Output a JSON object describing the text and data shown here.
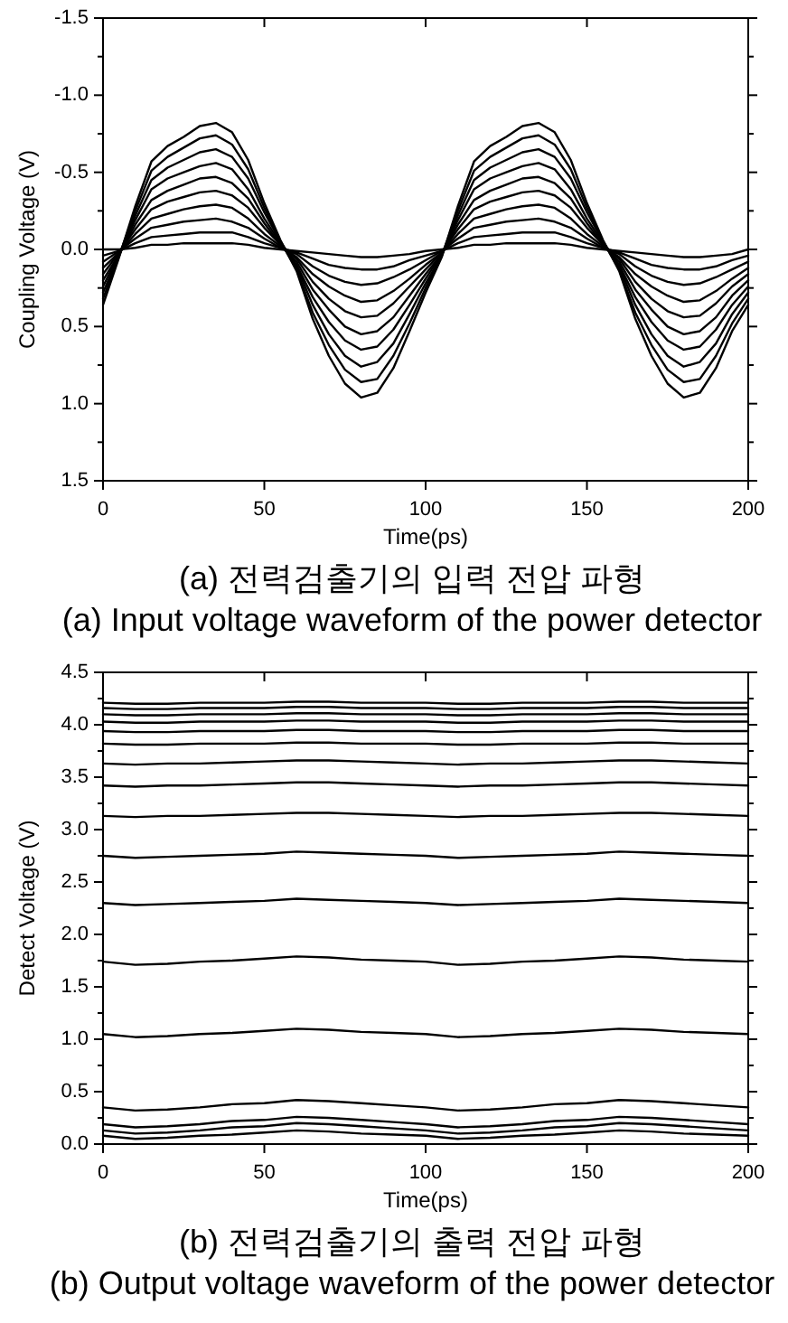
{
  "chart_data": [
    {
      "type": "line",
      "xlabel": "Time(ps)",
      "ylabel": "Coupling Voltage (V)",
      "annotations": [
        "(a) 전력검출기의 입력 전압 파형",
        "(a) Input voltage waveform of the power detector"
      ],
      "x": [
        0,
        5,
        10,
        15,
        20,
        25,
        30,
        35,
        40,
        45,
        50,
        55,
        60,
        65,
        70,
        75,
        80,
        85,
        90,
        95,
        100,
        105,
        110,
        115,
        120,
        125,
        130,
        135,
        140,
        145,
        150,
        155,
        160,
        165,
        170,
        175,
        180,
        185,
        190,
        195,
        200
      ],
      "xlim": [
        0,
        200
      ],
      "xticks": [
        0,
        50,
        100,
        150,
        200
      ],
      "ylim": [
        1.5,
        -1.5
      ],
      "yticks": [
        -1.5,
        {
          "value": -1.25,
          "label": null
        },
        {
          "value": -1,
          "label": "-1.0"
        },
        {
          "value": -0.75,
          "label": null
        },
        -0.5,
        {
          "value": -0.25,
          "label": null
        },
        {
          "value": 0,
          "label": "0.0"
        },
        {
          "value": 0.25,
          "label": null
        },
        0.5,
        {
          "value": 0.75,
          "label": null
        },
        {
          "value": 1,
          "label": "1.0"
        },
        {
          "value": 1.25,
          "label": null
        },
        1.5
      ],
      "series": [
        {
          "color": "#000000",
          "values": [
            0.36,
            0.05,
            -0.28,
            -0.57,
            -0.67,
            -0.73,
            -0.8,
            -0.82,
            -0.76,
            -0.58,
            -0.3,
            -0.06,
            0.14,
            0.45,
            0.69,
            0.87,
            0.96,
            0.93,
            0.77,
            0.53,
            0.28,
            0.05,
            -0.28,
            -0.57,
            -0.67,
            -0.73,
            -0.8,
            -0.82,
            -0.76,
            -0.58,
            -0.3,
            -0.06,
            0.14,
            0.45,
            0.69,
            0.87,
            0.96,
            0.93,
            0.77,
            0.53,
            0.36
          ]
        },
        {
          "color": "#000000",
          "values": [
            0.32,
            0.04,
            -0.25,
            -0.51,
            -0.6,
            -0.66,
            -0.72,
            -0.74,
            -0.68,
            -0.52,
            -0.27,
            -0.05,
            0.13,
            0.41,
            0.62,
            0.78,
            0.86,
            0.84,
            0.69,
            0.48,
            0.25,
            0.04,
            -0.25,
            -0.51,
            -0.6,
            -0.66,
            -0.72,
            -0.74,
            -0.68,
            -0.52,
            -0.27,
            -0.05,
            0.13,
            0.41,
            0.62,
            0.78,
            0.86,
            0.84,
            0.69,
            0.48,
            0.32
          ]
        },
        {
          "color": "#000000",
          "values": [
            0.28,
            0.04,
            -0.22,
            -0.45,
            -0.53,
            -0.58,
            -0.63,
            -0.65,
            -0.6,
            -0.46,
            -0.24,
            -0.05,
            0.11,
            0.36,
            0.55,
            0.69,
            0.76,
            0.73,
            0.61,
            0.42,
            0.22,
            0.04,
            -0.22,
            -0.45,
            -0.53,
            -0.58,
            -0.63,
            -0.65,
            -0.6,
            -0.46,
            -0.24,
            -0.05,
            0.11,
            0.36,
            0.55,
            0.69,
            0.76,
            0.73,
            0.61,
            0.42,
            0.28
          ]
        },
        {
          "color": "#000000",
          "values": [
            0.24,
            0.03,
            -0.19,
            -0.39,
            -0.46,
            -0.5,
            -0.54,
            -0.56,
            -0.52,
            -0.39,
            -0.2,
            -0.04,
            0.1,
            0.31,
            0.47,
            0.59,
            0.65,
            0.63,
            0.52,
            0.36,
            0.19,
            0.03,
            -0.19,
            -0.39,
            -0.46,
            -0.5,
            -0.54,
            -0.56,
            -0.52,
            -0.39,
            -0.2,
            -0.04,
            0.1,
            0.31,
            0.47,
            0.59,
            0.65,
            0.63,
            0.52,
            0.36,
            0.24
          ]
        },
        {
          "color": "#000000",
          "values": [
            0.2,
            0.03,
            -0.16,
            -0.32,
            -0.38,
            -0.42,
            -0.46,
            -0.47,
            -0.43,
            -0.33,
            -0.17,
            -0.03,
            0.08,
            0.26,
            0.39,
            0.5,
            0.55,
            0.53,
            0.44,
            0.3,
            0.16,
            0.03,
            -0.16,
            -0.32,
            -0.38,
            -0.42,
            -0.46,
            -0.47,
            -0.43,
            -0.33,
            -0.17,
            -0.03,
            0.08,
            0.26,
            0.39,
            0.5,
            0.55,
            0.53,
            0.44,
            0.3,
            0.2
          ]
        },
        {
          "color": "#000000",
          "values": [
            0.16,
            0.02,
            -0.13,
            -0.26,
            -0.31,
            -0.34,
            -0.37,
            -0.38,
            -0.35,
            -0.27,
            -0.14,
            -0.03,
            0.06,
            0.21,
            0.32,
            0.4,
            0.44,
            0.43,
            0.35,
            0.24,
            0.13,
            0.02,
            -0.13,
            -0.26,
            -0.31,
            -0.34,
            -0.37,
            -0.38,
            -0.35,
            -0.27,
            -0.14,
            -0.03,
            0.06,
            0.21,
            0.32,
            0.4,
            0.44,
            0.43,
            0.35,
            0.24,
            0.16
          ]
        },
        {
          "color": "#000000",
          "values": [
            0.12,
            0.02,
            -0.1,
            -0.2,
            -0.23,
            -0.26,
            -0.28,
            -0.29,
            -0.27,
            -0.2,
            -0.1,
            -0.02,
            0.05,
            0.16,
            0.24,
            0.3,
            0.34,
            0.33,
            0.27,
            0.19,
            0.1,
            0.02,
            -0.1,
            -0.2,
            -0.23,
            -0.26,
            -0.28,
            -0.29,
            -0.27,
            -0.2,
            -0.1,
            -0.02,
            0.05,
            0.16,
            0.24,
            0.3,
            0.34,
            0.33,
            0.27,
            0.19,
            0.12
          ]
        },
        {
          "color": "#000000",
          "values": [
            0.08,
            0.01,
            -0.07,
            -0.14,
            -0.16,
            -0.18,
            -0.19,
            -0.2,
            -0.18,
            -0.14,
            -0.07,
            -0.01,
            0.03,
            0.11,
            0.17,
            0.21,
            0.23,
            0.22,
            0.18,
            0.13,
            0.07,
            0.01,
            -0.07,
            -0.14,
            -0.16,
            -0.18,
            -0.19,
            -0.2,
            -0.18,
            -0.14,
            -0.07,
            -0.01,
            0.03,
            0.11,
            0.17,
            0.21,
            0.23,
            0.22,
            0.18,
            0.13,
            0.08
          ]
        },
        {
          "color": "#000000",
          "values": [
            0.04,
            0.01,
            -0.04,
            -0.08,
            -0.09,
            -0.1,
            -0.11,
            -0.11,
            -0.11,
            -0.08,
            -0.04,
            -0.01,
            0.02,
            0.06,
            0.1,
            0.12,
            0.13,
            0.13,
            0.11,
            0.07,
            0.04,
            0.01,
            -0.04,
            -0.08,
            -0.09,
            -0.1,
            -0.11,
            -0.11,
            -0.11,
            -0.08,
            -0.04,
            -0.01,
            0.02,
            0.06,
            0.1,
            0.12,
            0.13,
            0.13,
            0.11,
            0.07,
            0.04
          ]
        },
        {
          "color": "#000000",
          "values": [
            0,
            0,
            -0.01,
            -0.03,
            -0.03,
            -0.04,
            -0.04,
            -0.04,
            -0.04,
            -0.03,
            -0.01,
            0,
            0.01,
            0.02,
            0.03,
            0.04,
            0.05,
            0.05,
            0.04,
            0.03,
            0.01,
            0,
            -0.01,
            -0.03,
            -0.03,
            -0.04,
            -0.04,
            -0.04,
            -0.04,
            -0.03,
            -0.01,
            0,
            0.01,
            0.02,
            0.03,
            0.04,
            0.05,
            0.05,
            0.04,
            0.03,
            0
          ]
        }
      ]
    },
    {
      "type": "line",
      "xlabel": "Time(ps)",
      "ylabel": "Detect Voltage (V)",
      "annotations": [
        "(b) 전력검출기의 출력 전압 파형",
        "(b) Output voltage waveform of the power detector"
      ],
      "x": [
        0,
        10,
        20,
        30,
        40,
        50,
        60,
        70,
        80,
        90,
        100,
        110,
        120,
        130,
        140,
        150,
        160,
        170,
        180,
        190,
        200
      ],
      "xlim": [
        0,
        200
      ],
      "xticks": [
        0,
        50,
        100,
        150,
        200
      ],
      "ylim": [
        0,
        4.5
      ],
      "yticks": [
        {
          "value": 0,
          "label": "0.0"
        },
        {
          "value": 0.25,
          "label": null
        },
        0.5,
        {
          "value": 0.75,
          "label": null
        },
        {
          "value": 1,
          "label": "1.0"
        },
        {
          "value": 1.25,
          "label": null
        },
        1.5,
        {
          "value": 1.75,
          "label": null
        },
        {
          "value": 2,
          "label": "2.0"
        },
        {
          "value": 2.25,
          "label": null
        },
        2.5,
        {
          "value": 2.75,
          "label": null
        },
        {
          "value": 3,
          "label": "3.0"
        },
        {
          "value": 3.25,
          "label": null
        },
        3.5,
        {
          "value": 3.75,
          "label": null
        },
        {
          "value": 4,
          "label": "4.0"
        },
        {
          "value": 4.25,
          "label": null
        },
        4.5
      ],
      "series": [
        {
          "color": "#000000",
          "values": [
            4.21,
            4.2,
            4.2,
            4.21,
            4.21,
            4.21,
            4.22,
            4.22,
            4.21,
            4.21,
            4.21,
            4.2,
            4.2,
            4.21,
            4.21,
            4.21,
            4.22,
            4.22,
            4.21,
            4.21,
            4.21
          ]
        },
        {
          "color": "#000000",
          "values": [
            4.16,
            4.15,
            4.15,
            4.16,
            4.16,
            4.16,
            4.17,
            4.17,
            4.16,
            4.16,
            4.16,
            4.15,
            4.15,
            4.16,
            4.16,
            4.16,
            4.17,
            4.17,
            4.16,
            4.16,
            4.16
          ]
        },
        {
          "color": "#000000",
          "values": [
            4.1,
            4.09,
            4.09,
            4.1,
            4.1,
            4.1,
            4.11,
            4.11,
            4.1,
            4.1,
            4.1,
            4.09,
            4.09,
            4.1,
            4.1,
            4.1,
            4.11,
            4.11,
            4.1,
            4.1,
            4.1
          ]
        },
        {
          "color": "#000000",
          "values": [
            4.03,
            4.02,
            4.02,
            4.03,
            4.03,
            4.03,
            4.04,
            4.04,
            4.03,
            4.03,
            4.03,
            4.02,
            4.02,
            4.03,
            4.03,
            4.03,
            4.04,
            4.04,
            4.03,
            4.03,
            4.03
          ]
        },
        {
          "color": "#000000",
          "values": [
            3.94,
            3.93,
            3.93,
            3.94,
            3.94,
            3.94,
            3.95,
            3.95,
            3.94,
            3.94,
            3.94,
            3.93,
            3.93,
            3.94,
            3.94,
            3.94,
            3.95,
            3.95,
            3.94,
            3.94,
            3.94
          ]
        },
        {
          "color": "#000000",
          "values": [
            3.82,
            3.81,
            3.81,
            3.82,
            3.82,
            3.82,
            3.83,
            3.83,
            3.82,
            3.82,
            3.82,
            3.81,
            3.81,
            3.82,
            3.82,
            3.82,
            3.83,
            3.83,
            3.82,
            3.82,
            3.82
          ]
        },
        {
          "color": "#000000",
          "values": [
            3.63,
            3.62,
            3.63,
            3.63,
            3.64,
            3.65,
            3.66,
            3.66,
            3.65,
            3.64,
            3.63,
            3.62,
            3.63,
            3.63,
            3.64,
            3.65,
            3.66,
            3.66,
            3.65,
            3.64,
            3.63
          ]
        },
        {
          "color": "#000000",
          "values": [
            3.42,
            3.41,
            3.42,
            3.42,
            3.43,
            3.44,
            3.45,
            3.45,
            3.44,
            3.43,
            3.42,
            3.41,
            3.42,
            3.42,
            3.43,
            3.44,
            3.45,
            3.45,
            3.44,
            3.43,
            3.42
          ]
        },
        {
          "color": "#000000",
          "values": [
            3.13,
            3.12,
            3.13,
            3.13,
            3.14,
            3.15,
            3.16,
            3.16,
            3.15,
            3.14,
            3.13,
            3.12,
            3.13,
            3.13,
            3.14,
            3.15,
            3.16,
            3.16,
            3.15,
            3.14,
            3.13
          ]
        },
        {
          "color": "#000000",
          "values": [
            2.75,
            2.73,
            2.74,
            2.75,
            2.76,
            2.77,
            2.79,
            2.78,
            2.77,
            2.76,
            2.75,
            2.73,
            2.74,
            2.75,
            2.76,
            2.77,
            2.79,
            2.78,
            2.77,
            2.76,
            2.75
          ]
        },
        {
          "color": "#000000",
          "values": [
            2.3,
            2.28,
            2.29,
            2.3,
            2.31,
            2.32,
            2.34,
            2.33,
            2.32,
            2.31,
            2.3,
            2.28,
            2.29,
            2.3,
            2.31,
            2.32,
            2.34,
            2.33,
            2.32,
            2.31,
            2.3
          ]
        },
        {
          "color": "#000000",
          "values": [
            1.74,
            1.71,
            1.72,
            1.74,
            1.75,
            1.77,
            1.79,
            1.78,
            1.76,
            1.75,
            1.74,
            1.71,
            1.72,
            1.74,
            1.75,
            1.77,
            1.79,
            1.78,
            1.76,
            1.75,
            1.74
          ]
        },
        {
          "color": "#000000",
          "values": [
            1.05,
            1.02,
            1.03,
            1.05,
            1.06,
            1.08,
            1.1,
            1.09,
            1.07,
            1.06,
            1.05,
            1.02,
            1.03,
            1.05,
            1.06,
            1.08,
            1.1,
            1.09,
            1.07,
            1.06,
            1.05
          ]
        },
        {
          "color": "#000000",
          "values": [
            0.35,
            0.32,
            0.33,
            0.35,
            0.38,
            0.39,
            0.42,
            0.41,
            0.39,
            0.37,
            0.35,
            0.32,
            0.33,
            0.35,
            0.38,
            0.39,
            0.42,
            0.41,
            0.39,
            0.37,
            0.35
          ]
        },
        {
          "color": "#000000",
          "values": [
            0.19,
            0.16,
            0.17,
            0.19,
            0.22,
            0.23,
            0.26,
            0.25,
            0.23,
            0.21,
            0.19,
            0.16,
            0.17,
            0.19,
            0.22,
            0.23,
            0.26,
            0.25,
            0.23,
            0.21,
            0.19
          ]
        },
        {
          "color": "#000000",
          "values": [
            0.13,
            0.1,
            0.11,
            0.13,
            0.16,
            0.17,
            0.2,
            0.19,
            0.17,
            0.15,
            0.13,
            0.1,
            0.11,
            0.13,
            0.16,
            0.17,
            0.2,
            0.19,
            0.17,
            0.15,
            0.13
          ]
        },
        {
          "color": "#000000",
          "values": [
            0.08,
            0.05,
            0.06,
            0.08,
            0.09,
            0.11,
            0.13,
            0.12,
            0.1,
            0.09,
            0.08,
            0.05,
            0.06,
            0.08,
            0.09,
            0.11,
            0.13,
            0.12,
            0.1,
            0.09,
            0.08
          ]
        }
      ]
    }
  ]
}
